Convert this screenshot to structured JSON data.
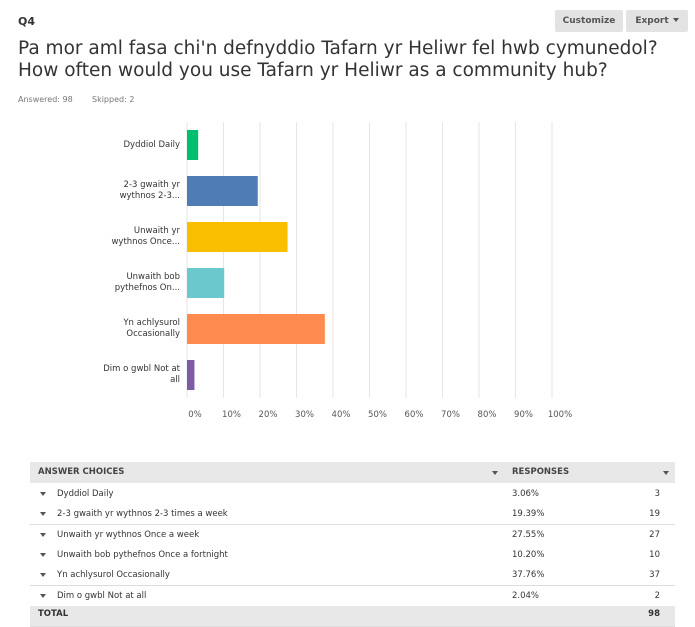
{
  "header": {
    "question": "Q4",
    "buttons": [
      "Customize",
      "Export"
    ],
    "title": "Pa mor aml fasa chi'n defnyddio Tafarn yr Heliwr fel hwb cymunedol? How often would you use Tafarn yr Heliwr as a community hub?",
    "answered": "Answered: 98",
    "skipped": "Skipped: 2"
  },
  "chart_data": {
    "type": "hbar",
    "categories": [
      "Dyddiol Daily",
      "2-3 gwaith yr wythnos 2-3...",
      "Unwaith yr wythnos Once...",
      "Unwaith bob pythefnos On...",
      "Yn achlysurol Occasionally",
      "Dim o gwbl Not at all"
    ],
    "values": [
      3.06,
      19.39,
      27.55,
      10.2,
      37.76,
      2.04
    ],
    "colors": [
      "#00bf6f",
      "#507cb6",
      "#f9be00",
      "#6bc8cd",
      "#ff8b4f",
      "#7d5ba6"
    ],
    "xlim": [
      0,
      100
    ],
    "xticks": [
      {
        "value": 0,
        "label": "0%"
      },
      {
        "value": 10,
        "label": "10%"
      },
      {
        "value": 20,
        "label": "20%"
      },
      {
        "value": 30,
        "label": "30%"
      },
      {
        "value": 40,
        "label": "40%"
      },
      {
        "value": 50,
        "label": "50%"
      },
      {
        "value": 60,
        "label": "60%"
      },
      {
        "value": 70,
        "label": "70%"
      },
      {
        "value": 80,
        "label": "80%"
      },
      {
        "value": 90,
        "label": "90%"
      },
      {
        "value": 100,
        "label": "100%"
      }
    ],
    "grid": true
  },
  "table": {
    "headers": [
      "ANSWER CHOICES",
      "RESPONSES"
    ],
    "rows": [
      [
        "Dyddiol Daily",
        "3.06%",
        "3"
      ],
      [
        "2-3 gwaith yr wythnos 2-3 times a week",
        "19.39%",
        "19"
      ],
      [
        "Unwaith yr wythnos Once a week",
        "27.55%",
        "27"
      ],
      [
        "Unwaith bob pythefnos Once a fortnight",
        "10.20%",
        "10"
      ],
      [
        "Yn achlysurol Occasionally",
        "37.76%",
        "37"
      ],
      [
        "Dim o gwbl Not at all",
        "2.04%",
        "2"
      ]
    ],
    "total": [
      "TOTAL",
      "98"
    ]
  }
}
